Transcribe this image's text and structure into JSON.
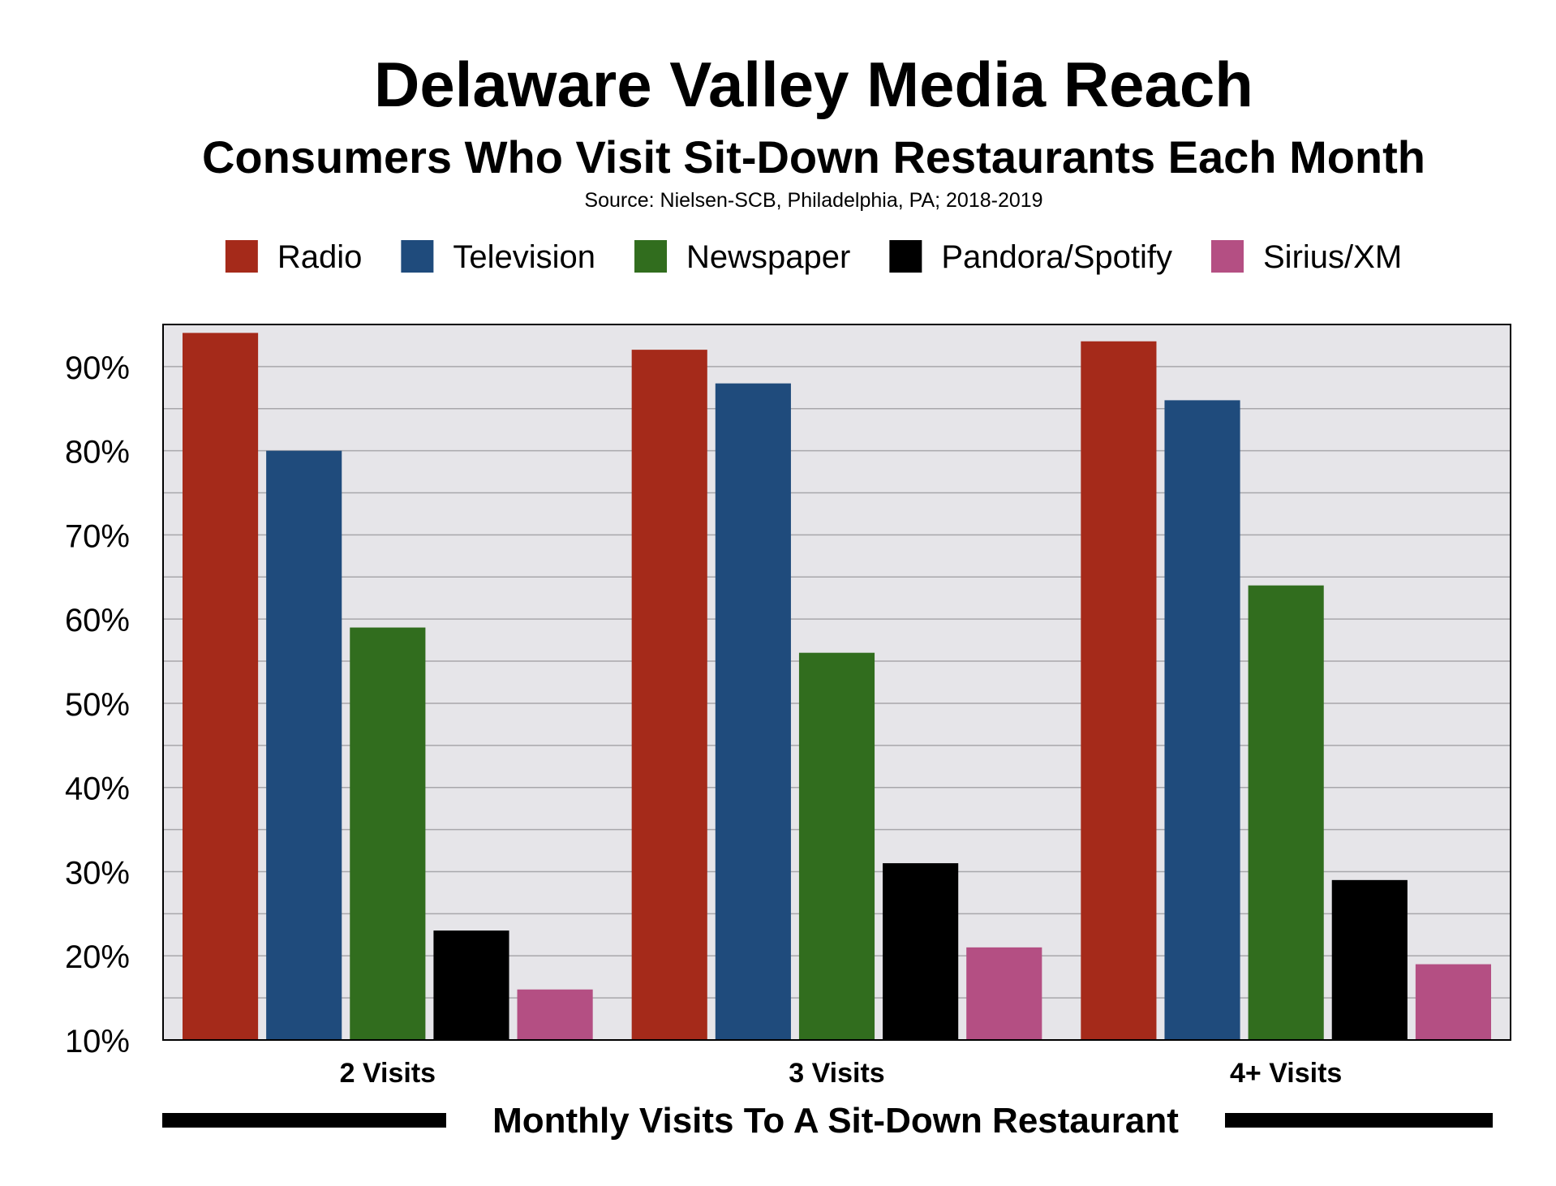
{
  "chart_data": {
    "type": "bar",
    "title": "Delaware Valley Media Reach",
    "subtitle": "Consumers Who Visit Sit-Down Restaurants Each Month",
    "source": "Source: Nielsen-SCB, Philadelphia, PA; 2018-2019",
    "xlabel": "Monthly Visits To A Sit-Down Restaurant",
    "ylabel": "",
    "categories": [
      "2 Visits",
      "3 Visits",
      "4+ Visits"
    ],
    "ylim": [
      10,
      95
    ],
    "yticks": [
      10,
      20,
      30,
      40,
      50,
      60,
      70,
      80,
      90
    ],
    "ytick_labels": [
      "10%",
      "20%",
      "30%",
      "40%",
      "50%",
      "60%",
      "70%",
      "80%",
      "90%"
    ],
    "grid": true,
    "legend_position": "top",
    "plot_background": "#e6e5e9",
    "series": [
      {
        "name": "Radio",
        "color": "#a52a1a",
        "values": [
          94,
          92,
          93
        ]
      },
      {
        "name": "Television",
        "color": "#1f4b7c",
        "values": [
          80,
          88,
          86
        ]
      },
      {
        "name": "Newspaper",
        "color": "#316d1e",
        "values": [
          59,
          56,
          64
        ]
      },
      {
        "name": "Pandora/Spotify",
        "color": "#000000",
        "values": [
          23,
          31,
          29
        ]
      },
      {
        "name": "Sirius/XM",
        "color": "#b44f83",
        "values": [
          16,
          21,
          19
        ]
      }
    ]
  }
}
